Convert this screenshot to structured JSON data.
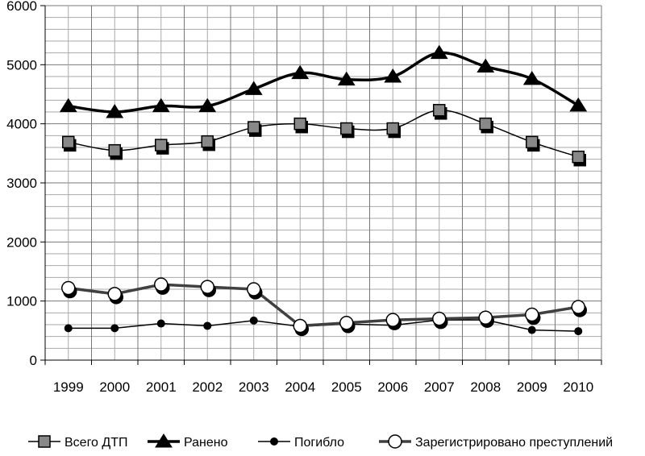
{
  "chart_data": {
    "type": "line",
    "title": "",
    "xlabel": "",
    "ylabel": "",
    "ylim": [
      0,
      6000
    ],
    "yticks": [
      "0",
      "1000",
      "2000",
      "3000",
      "4000",
      "5000",
      "6000"
    ],
    "ytick_values": [
      0,
      1000,
      2000,
      3000,
      4000,
      5000,
      6000
    ],
    "categories": [
      "1999",
      "2000",
      "2001",
      "2002",
      "2003",
      "2004",
      "2005",
      "2006",
      "2007",
      "2008",
      "2009",
      "2010"
    ],
    "grid": true,
    "legend_position": "bottom",
    "series": [
      {
        "name": "Всего ДТП",
        "marker": "square",
        "color": "#808080",
        "values": [
          3690,
          3550,
          3640,
          3700,
          3940,
          4000,
          3920,
          3920,
          4230,
          4000,
          3690,
          3440
        ]
      },
      {
        "name": "Ранено",
        "marker": "triangle",
        "color": "#000000",
        "values": [
          4300,
          4200,
          4300,
          4300,
          4590,
          4860,
          4750,
          4800,
          5200,
          4970,
          4760,
          4310
        ]
      },
      {
        "name": "Погибло",
        "marker": "dot",
        "color": "#000000",
        "values": [
          540,
          540,
          620,
          580,
          670,
          570,
          610,
          590,
          680,
          680,
          510,
          490
        ]
      },
      {
        "name": "Зарегистрировано преступлений",
        "marker": "circle",
        "color": "#404040",
        "values": [
          1220,
          1120,
          1280,
          1240,
          1200,
          580,
          630,
          680,
          700,
          720,
          770,
          900
        ]
      }
    ]
  }
}
